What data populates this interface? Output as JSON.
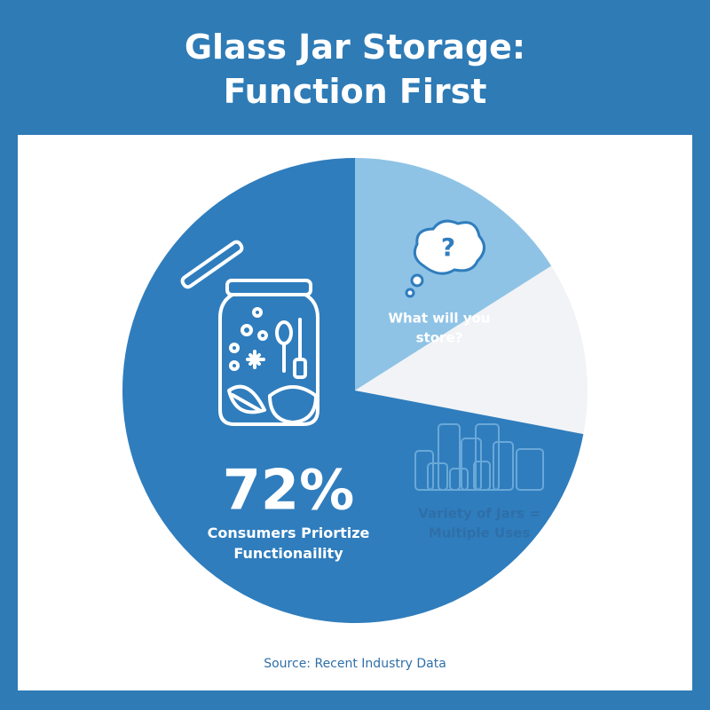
{
  "chart_data": {
    "type": "pie",
    "title": "Glass Jar Storage: Function First",
    "categories": [
      "What will you store?",
      "Variety of Jars = Multiple Uses",
      "Consumers Priortize Functionaility"
    ],
    "values": [
      16,
      12,
      72
    ],
    "value_labels": [
      null,
      null,
      "72%"
    ],
    "colors": [
      "#8ec3e6",
      "#f1f3f6",
      "#2f7dbd"
    ],
    "source": "Source: Recent Industry Data"
  }
}
